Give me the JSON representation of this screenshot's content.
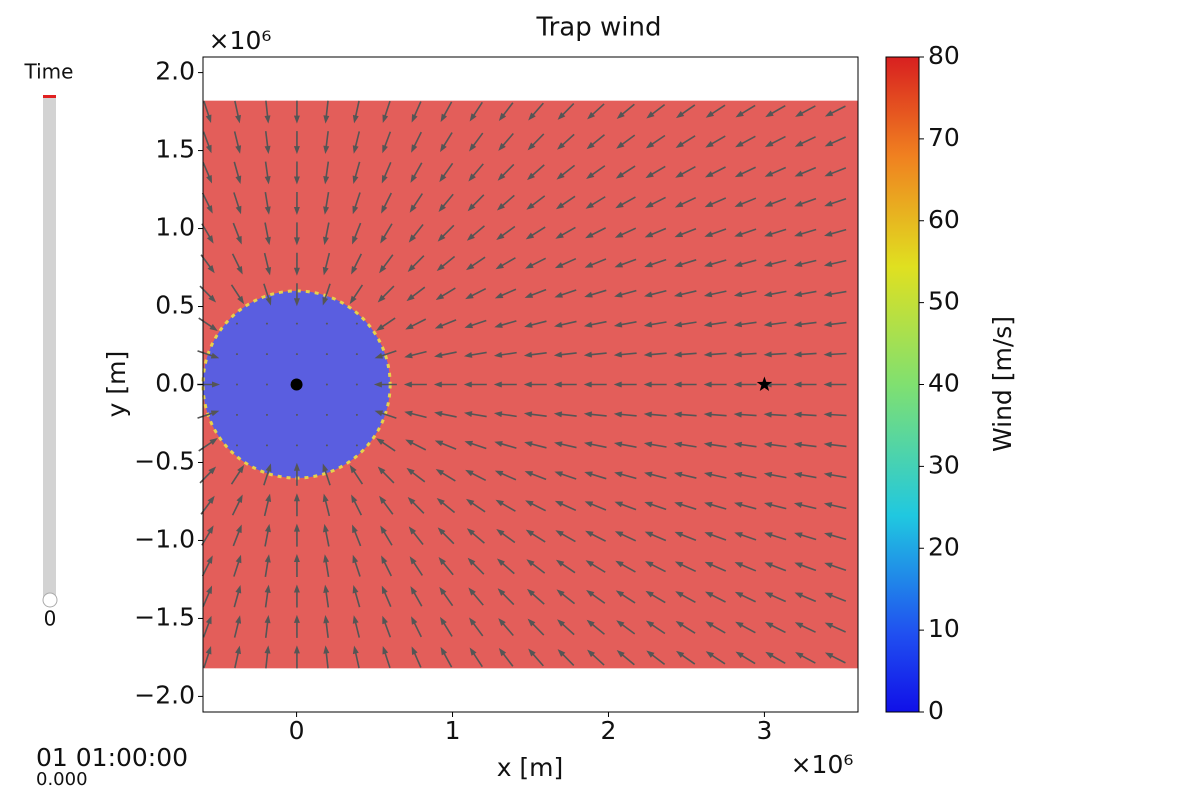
{
  "chart_data": {
    "type": "quiver-heatmap",
    "title": "Trap wind",
    "x_label": "x [m]",
    "y_label": "y [m]",
    "x_offset_label": "×10⁶",
    "y_offset_label": "×10⁶",
    "xlim": [
      -0.6,
      3.6
    ],
    "ylim": [
      -2.1,
      2.1
    ],
    "xticks": [
      0,
      1,
      2,
      3
    ],
    "yticks": [
      {
        "value": -2.0,
        "label": "−2.0"
      },
      {
        "value": -1.5,
        "label": "−1.5"
      },
      {
        "value": -1.0,
        "label": "−1.0"
      },
      {
        "value": -0.5,
        "label": "−0.5"
      },
      {
        "value": 0.0,
        "label": "0.0"
      },
      {
        "value": 0.5,
        "label": "0.5"
      },
      {
        "value": 1.0,
        "label": "1.0"
      },
      {
        "value": 1.5,
        "label": "1.5"
      },
      {
        "value": 2.0,
        "label": "2.0"
      }
    ],
    "field": {
      "xlim": [
        -0.6,
        3.6
      ],
      "ylim": [
        -1.82,
        1.82
      ],
      "trap_center": [
        0,
        0
      ],
      "trap_radius": 0.6,
      "inside_value": 8,
      "outside_value": 78,
      "inside_color": "#5a5ee0",
      "outside_color": "#e35e5a",
      "arrow_color": "#555555"
    },
    "markers": [
      {
        "x": 0,
        "y": 0,
        "symbol": "circle"
      },
      {
        "x": 3,
        "y": 0,
        "symbol": "star"
      }
    ],
    "colorbar": {
      "label": "Wind [m/s]",
      "lim": [
        0,
        80
      ],
      "ticks": [
        0,
        10,
        20,
        30,
        40,
        50,
        60,
        70,
        80
      ],
      "colormap": "jet"
    }
  },
  "slider": {
    "label": "Time",
    "value": 0,
    "time": "01 01:00:00",
    "sub_time": "0.000"
  }
}
